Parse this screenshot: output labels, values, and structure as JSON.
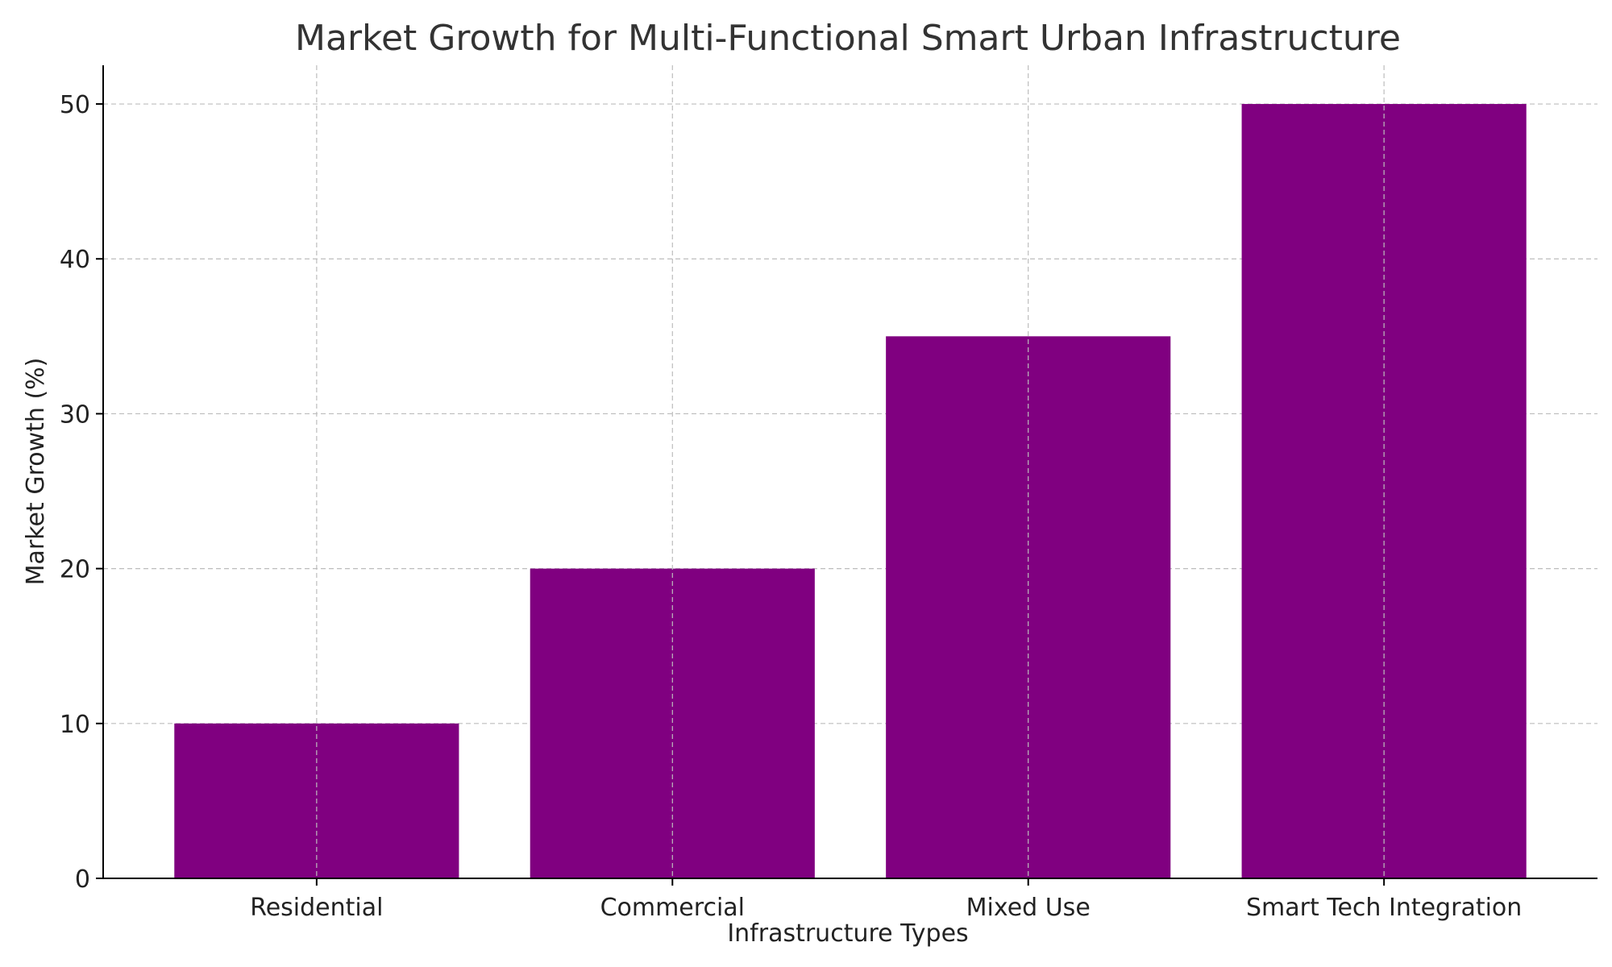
{
  "chart_data": {
    "type": "bar",
    "title": "Market Growth for Multi-Functional Smart Urban Infrastructure",
    "xlabel": "Infrastructure Types",
    "ylabel": "Market Growth (%)",
    "categories": [
      "Residential",
      "Commercial",
      "Mixed Use",
      "Smart Tech Integration"
    ],
    "values": [
      10,
      20,
      35,
      50
    ],
    "ylim": [
      0,
      52.5
    ],
    "yticks": [
      0,
      10,
      20,
      30,
      40,
      50
    ],
    "grid": true,
    "bar_color": "#800080"
  }
}
